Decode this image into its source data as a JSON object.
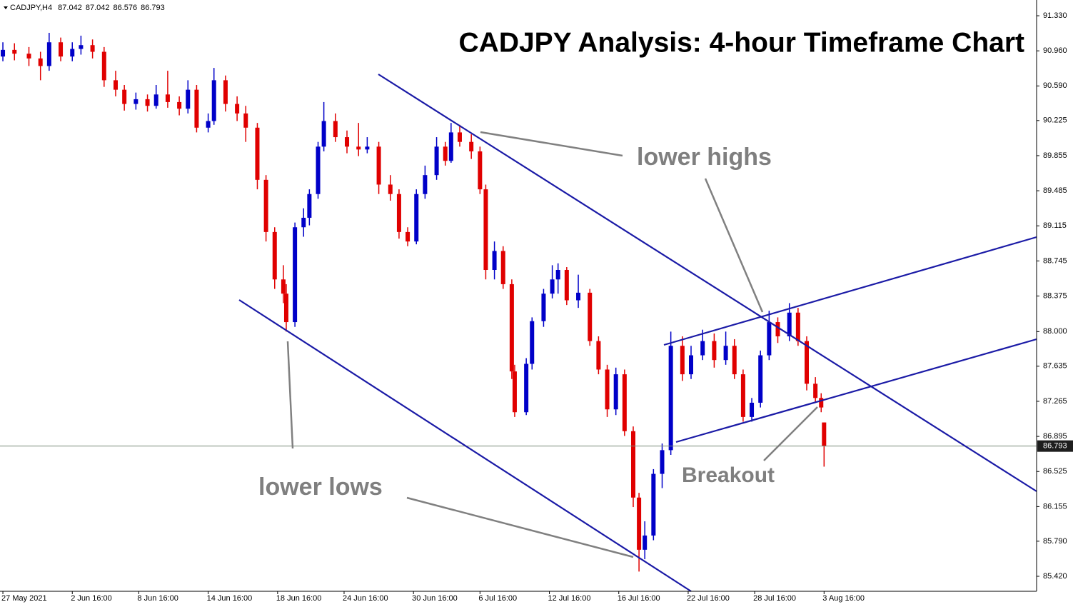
{
  "chart_data": {
    "type": "candlestick",
    "symbol": "CADJPY,H4",
    "title": "CADJPY Analysis: 4-hour Timeframe Chart",
    "annotations": [
      "lower highs",
      "lower lows",
      "Breakout"
    ],
    "up_color": "#0000c8",
    "down_color": "#e00000",
    "ylim": [
      85.262,
      91.496
    ],
    "yticks": [
      {
        "value": 91.33,
        "label": "91.330"
      },
      {
        "value": 90.96,
        "label": "90.960"
      },
      {
        "value": 90.59,
        "label": "90.590"
      },
      {
        "value": 90.225,
        "label": "90.225"
      },
      {
        "value": 89.855,
        "label": "89.855"
      },
      {
        "value": 89.485,
        "label": "89.485"
      },
      {
        "value": 89.115,
        "label": "89.115"
      },
      {
        "value": 88.745,
        "label": "88.745"
      },
      {
        "value": 88.375,
        "label": "88.375"
      },
      {
        "value": 88.0,
        "label": "88.000"
      },
      {
        "value": 87.635,
        "label": "87.635"
      },
      {
        "value": 87.265,
        "label": "87.265"
      },
      {
        "value": 86.895,
        "label": "86.895"
      },
      {
        "value": 86.525,
        "label": "86.525"
      },
      {
        "value": 86.155,
        "label": "86.155"
      },
      {
        "value": 85.79,
        "label": "85.790"
      },
      {
        "value": 85.42,
        "label": "85.420"
      }
    ],
    "xlim": [
      -1,
      357.5
    ],
    "xticks": [
      {
        "value": 0,
        "label": "27 May 2021"
      },
      {
        "value": 24,
        "label": "2 Jun 16:00"
      },
      {
        "value": 47,
        "label": "8 Jun 16:00"
      },
      {
        "value": 71,
        "label": "14 Jun 16:00"
      },
      {
        "value": 95,
        "label": "18 Jun 16:00"
      },
      {
        "value": 118,
        "label": "24 Jun 16:00"
      },
      {
        "value": 142,
        "label": "30 Jun 16:00"
      },
      {
        "value": 165,
        "label": "6 Jul 16:00"
      },
      {
        "value": 189,
        "label": "12 Jul 16:00"
      },
      {
        "value": 213,
        "label": "16 Jul 16:00"
      },
      {
        "value": 237,
        "label": "22 Jul 16:00"
      },
      {
        "value": 260,
        "label": "28 Jul 16:00"
      },
      {
        "value": 284,
        "label": "3 Aug 16:00"
      }
    ],
    "x": [
      0,
      4,
      9,
      13,
      16,
      20,
      24,
      27,
      31,
      35,
      39,
      42,
      46,
      50,
      53,
      57,
      61,
      64,
      67,
      71,
      73,
      77,
      81,
      84,
      88,
      91,
      94,
      97,
      98,
      101,
      104,
      106,
      109,
      111,
      115,
      119,
      123,
      126,
      130,
      134,
      137,
      140,
      143,
      146,
      150,
      153,
      155,
      158,
      162,
      165,
      167,
      170,
      173,
      176,
      177,
      181,
      183,
      187,
      190,
      192,
      195,
      199,
      203,
      206,
      209,
      212,
      215,
      218,
      220,
      222,
      225,
      228,
      231,
      235,
      238,
      242,
      246,
      250,
      253,
      256,
      259,
      262,
      265,
      268,
      272,
      275,
      278,
      281,
      283,
      284
    ],
    "ohlc": [
      [
        90.9,
        91.05,
        90.85,
        90.97
      ],
      [
        90.97,
        91.04,
        90.86,
        90.93
      ],
      [
        90.93,
        91.0,
        90.8,
        90.88
      ],
      [
        90.88,
        90.95,
        90.65,
        90.8
      ],
      [
        90.8,
        91.15,
        90.75,
        91.05
      ],
      [
        91.05,
        91.1,
        90.85,
        90.9
      ],
      [
        90.9,
        91.05,
        90.85,
        90.98
      ],
      [
        90.98,
        91.12,
        90.92,
        91.02
      ],
      [
        91.02,
        91.08,
        90.88,
        90.95
      ],
      [
        90.95,
        91.0,
        90.58,
        90.65
      ],
      [
        90.65,
        90.75,
        90.48,
        90.55
      ],
      [
        90.55,
        90.6,
        90.33,
        90.4
      ],
      [
        90.4,
        90.52,
        90.34,
        90.45
      ],
      [
        90.45,
        90.5,
        90.32,
        90.38
      ],
      [
        90.38,
        90.6,
        90.35,
        90.5
      ],
      [
        90.5,
        90.75,
        90.36,
        90.42
      ],
      [
        90.42,
        90.48,
        90.28,
        90.35
      ],
      [
        90.35,
        90.65,
        90.3,
        90.55
      ],
      [
        90.55,
        90.6,
        90.1,
        90.15
      ],
      [
        90.15,
        90.3,
        90.1,
        90.22
      ],
      [
        90.22,
        90.78,
        90.18,
        90.65
      ],
      [
        90.65,
        90.7,
        90.32,
        90.4
      ],
      [
        90.4,
        90.48,
        90.22,
        90.3
      ],
      [
        90.3,
        90.38,
        90.0,
        90.15
      ],
      [
        90.15,
        90.2,
        89.5,
        89.6
      ],
      [
        89.6,
        89.65,
        88.95,
        89.05
      ],
      [
        89.05,
        89.1,
        88.45,
        88.55
      ],
      [
        88.55,
        88.7,
        88.3,
        88.4
      ],
      [
        88.4,
        88.5,
        88.0,
        88.1
      ],
      [
        88.1,
        89.15,
        88.05,
        89.1
      ],
      [
        89.1,
        89.3,
        89.0,
        89.2
      ],
      [
        89.2,
        89.5,
        89.12,
        89.45
      ],
      [
        89.45,
        90.0,
        89.4,
        89.95
      ],
      [
        89.95,
        90.42,
        89.9,
        90.22
      ],
      [
        90.22,
        90.3,
        90.0,
        90.05
      ],
      [
        90.05,
        90.12,
        89.88,
        89.95
      ],
      [
        89.95,
        90.2,
        89.85,
        89.92
      ],
      [
        89.92,
        90.05,
        89.88,
        89.95
      ],
      [
        89.95,
        90.0,
        89.45,
        89.55
      ],
      [
        89.55,
        89.65,
        89.38,
        89.45
      ],
      [
        89.45,
        89.5,
        88.98,
        89.05
      ],
      [
        89.05,
        89.1,
        88.9,
        88.95
      ],
      [
        88.95,
        89.5,
        88.92,
        89.45
      ],
      [
        89.45,
        89.75,
        89.4,
        89.65
      ],
      [
        89.65,
        90.05,
        89.6,
        89.95
      ],
      [
        89.95,
        90.0,
        89.75,
        89.8
      ],
      [
        89.8,
        90.2,
        89.78,
        90.1
      ],
      [
        90.1,
        90.18,
        89.95,
        90.0
      ],
      [
        90.0,
        90.08,
        89.82,
        89.9
      ],
      [
        89.9,
        89.95,
        89.45,
        89.5
      ],
      [
        89.5,
        89.55,
        88.55,
        88.65
      ],
      [
        88.65,
        88.95,
        88.55,
        88.85
      ],
      [
        88.85,
        88.9,
        88.45,
        88.5
      ],
      [
        88.5,
        88.55,
        87.5,
        87.58
      ],
      [
        87.58,
        87.65,
        87.1,
        87.15
      ],
      [
        87.15,
        87.72,
        87.12,
        87.66
      ],
      [
        87.66,
        88.15,
        87.6,
        88.11
      ],
      [
        88.11,
        88.45,
        88.05,
        88.4
      ],
      [
        88.4,
        88.7,
        88.35,
        88.55
      ],
      [
        88.55,
        88.72,
        88.4,
        88.65
      ],
      [
        88.65,
        88.68,
        88.28,
        88.33
      ],
      [
        88.33,
        88.6,
        88.25,
        88.41
      ],
      [
        88.41,
        88.45,
        87.85,
        87.9
      ],
      [
        87.9,
        87.95,
        87.55,
        87.6
      ],
      [
        87.6,
        87.65,
        87.1,
        87.18
      ],
      [
        87.18,
        87.62,
        87.12,
        87.55
      ],
      [
        87.55,
        87.6,
        86.9,
        86.95
      ],
      [
        86.95,
        87.0,
        86.15,
        86.25
      ],
      [
        86.25,
        86.3,
        85.47,
        85.7
      ],
      [
        85.7,
        86.0,
        85.6,
        85.85
      ],
      [
        85.85,
        86.55,
        85.8,
        86.5
      ],
      [
        86.5,
        86.82,
        86.35,
        86.75
      ],
      [
        86.75,
        88.0,
        86.7,
        87.85
      ],
      [
        87.85,
        87.95,
        87.48,
        87.55
      ],
      [
        87.55,
        87.85,
        87.5,
        87.75
      ],
      [
        87.75,
        88.02,
        87.7,
        87.9
      ],
      [
        87.9,
        87.98,
        87.62,
        87.7
      ],
      [
        87.7,
        88.0,
        87.65,
        87.85
      ],
      [
        87.85,
        87.92,
        87.5,
        87.55
      ],
      [
        87.55,
        87.6,
        87.05,
        87.1
      ],
      [
        87.1,
        87.3,
        87.05,
        87.25
      ],
      [
        87.25,
        87.8,
        87.2,
        87.75
      ],
      [
        87.75,
        88.22,
        87.7,
        88.1
      ],
      [
        88.1,
        88.15,
        87.88,
        87.95
      ],
      [
        87.95,
        88.3,
        87.9,
        88.2
      ],
      [
        88.2,
        88.25,
        87.85,
        87.9
      ],
      [
        87.9,
        87.95,
        87.38,
        87.45
      ],
      [
        87.45,
        87.52,
        87.25,
        87.3
      ],
      [
        87.3,
        87.35,
        87.15,
        87.2
      ],
      [
        87.042,
        87.042,
        86.576,
        86.793
      ]
    ]
  }
}
